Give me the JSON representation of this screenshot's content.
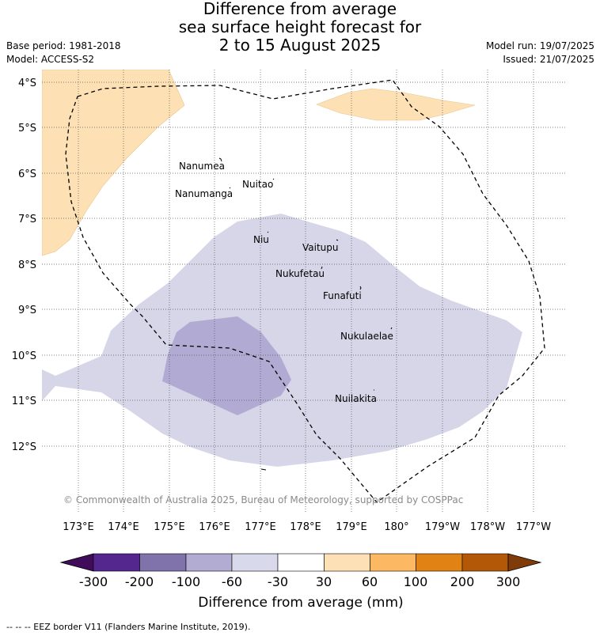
{
  "header": {
    "title_line1": "Difference from average",
    "title_line2": "sea surface height forecast for",
    "title_line3": "2 to 15 August 2025",
    "base_period": "Base period: 1981-2018",
    "model": "Model: ACCESS-S2",
    "model_run": "Model run: 19/07/2025",
    "issued": "Issued: 21/07/2025"
  },
  "map": {
    "lat_labels": [
      "4°S",
      "5°S",
      "6°S",
      "7°S",
      "8°S",
      "9°S",
      "10°S",
      "11°S",
      "12°S"
    ],
    "lon_labels": [
      "173°E",
      "174°E",
      "175°E",
      "176°E",
      "177°E",
      "178°E",
      "179°E",
      "180°",
      "179°W",
      "178°W",
      "177°W"
    ],
    "places": [
      {
        "name": "Nanumea"
      },
      {
        "name": "Nanumanga"
      },
      {
        "name": "Nuitao"
      },
      {
        "name": "Niu"
      },
      {
        "name": "Vaitupu"
      },
      {
        "name": "Nukufetau"
      },
      {
        "name": "Funafuti"
      },
      {
        "name": "Nukulaelae"
      },
      {
        "name": "Nuilakita"
      }
    ],
    "copyright": "© Commonwealth of Australia 2025, Bureau of Meteorology, supported by COSPPac",
    "colors": {
      "anomaly_minus_60_to_minus_30": "#d6d6e8",
      "anomaly_minus_100_to_minus_60": "#b1abd3",
      "anomaly_30_to_60": "#fde0b4",
      "eez_border": "#000000"
    }
  },
  "legend": {
    "ticks": [
      "-300",
      "-200",
      "-100",
      "-60",
      "-30",
      "30",
      "60",
      "100",
      "200",
      "300"
    ],
    "colors": [
      "#3f0b5a",
      "#54278f",
      "#8073ac",
      "#b2abd2",
      "#d8daeb",
      "#ffffff",
      "#fee0b6",
      "#fdb863",
      "#e08214",
      "#b35806",
      "#7f3b08"
    ],
    "label": "Difference from average (mm)"
  },
  "footnote": "--  --  -- EEZ border V11 (Flanders Marine Institute, 2019)."
}
